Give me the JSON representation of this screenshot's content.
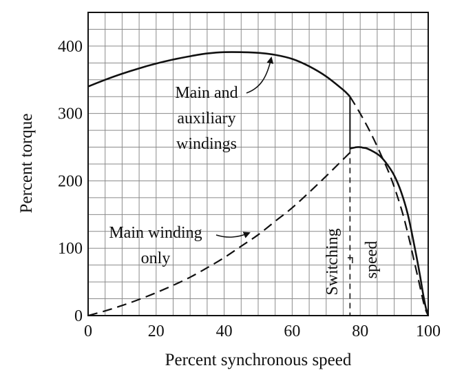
{
  "chart_data": {
    "type": "line",
    "title": "",
    "xlabel": "Percent synchronous speed",
    "ylabel": "Percent torque",
    "xlim": [
      0,
      100
    ],
    "ylim": [
      0,
      450
    ],
    "grid": true,
    "x_ticks": [
      0,
      20,
      40,
      60,
      80,
      100
    ],
    "y_ticks": [
      0,
      100,
      200,
      300,
      400
    ],
    "series": [
      {
        "name": "Main and auxiliary windings",
        "style": "solid",
        "x": [
          0,
          5,
          10,
          15,
          20,
          25,
          30,
          35,
          40,
          45,
          50,
          55,
          60,
          65,
          70,
          75,
          77
        ],
        "y": [
          340,
          350,
          359,
          367,
          374,
          380,
          385,
          389,
          391,
          391,
          390,
          387,
          381,
          370,
          355,
          335,
          325
        ]
      },
      {
        "name": "Main and auxiliary windings (extension)",
        "style": "dashed",
        "x": [
          77,
          80,
          83,
          86,
          89,
          92,
          94,
          96,
          97.5,
          98.5,
          99.3,
          100
        ],
        "y": [
          325,
          300,
          272,
          240,
          205,
          160,
          122,
          78,
          45,
          22,
          8,
          0
        ]
      },
      {
        "name": "Main winding only",
        "style": "dashed",
        "x": [
          0,
          5,
          10,
          15,
          20,
          25,
          30,
          35,
          40,
          45,
          50,
          55,
          60,
          65,
          70,
          75,
          77
        ],
        "y": [
          0,
          7,
          15,
          24,
          34,
          45,
          57,
          71,
          86,
          103,
          120,
          140,
          160,
          183,
          207,
          232,
          242
        ]
      },
      {
        "name": "Main winding only (after switching)",
        "style": "solid",
        "x": [
          77,
          78,
          79,
          80,
          81,
          82,
          84,
          86,
          88,
          90,
          92,
          94,
          96,
          97.5,
          98.5,
          99.3,
          100
        ],
        "y": [
          248,
          249,
          250,
          250,
          249,
          248,
          243,
          236,
          224,
          208,
          184,
          150,
          102,
          62,
          32,
          12,
          0
        ]
      }
    ],
    "switching_speed": 77,
    "annotations": {
      "main_aux_line1": "Main and",
      "main_aux_line2": "auxiliary",
      "main_aux_line3": "windings",
      "main_only_line1": "Main winding",
      "main_only_line2": "only",
      "switching_line1": "Switching",
      "switching_line2": "speed"
    }
  }
}
